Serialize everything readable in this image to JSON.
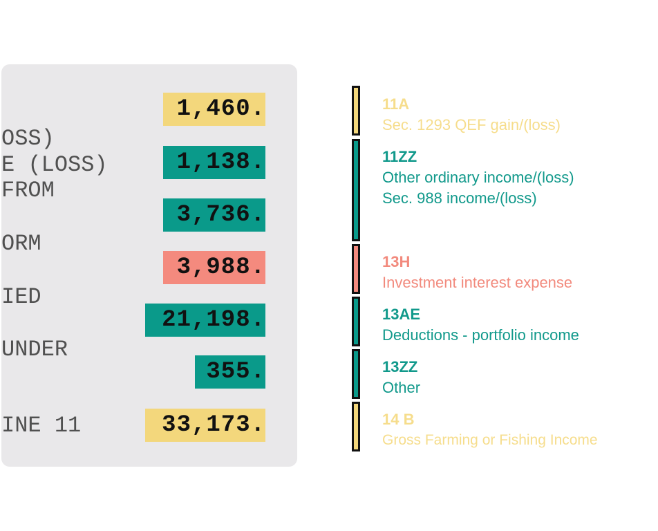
{
  "colors": {
    "yellow": "#f3d77c",
    "teal": "#0a9a8a",
    "salmon": "#f48a7e",
    "yellow_text": "#f6dd8c",
    "teal_text": "#11998b",
    "salmon_text": "#f28a7d"
  },
  "form": {
    "line_fragments": [
      "OSS)",
      "E (LOSS)",
      " FROM",
      "ORM",
      "IED",
      "UNDER",
      "INE 11"
    ],
    "amounts": [
      "1,460.",
      "1,138.",
      "3,736.",
      "3,988.",
      "21,198.",
      "355.",
      "33,173."
    ]
  },
  "legend": [
    {
      "code": "11A",
      "lines": [
        "Sec. 1293 QEF gain/(loss)"
      ]
    },
    {
      "code": "11ZZ",
      "lines": [
        "Other ordinary income/(loss)",
        "Sec. 988 income/(loss)"
      ]
    },
    {
      "code": "13H",
      "lines": [
        "Investment interest expense"
      ]
    },
    {
      "code": "13AE",
      "lines": [
        "Deductions - portfolio income"
      ]
    },
    {
      "code": "13ZZ",
      "lines": [
        "Other"
      ]
    },
    {
      "code": "14 B",
      "lines": [
        "Gross Farming or Fishing Income"
      ]
    }
  ]
}
